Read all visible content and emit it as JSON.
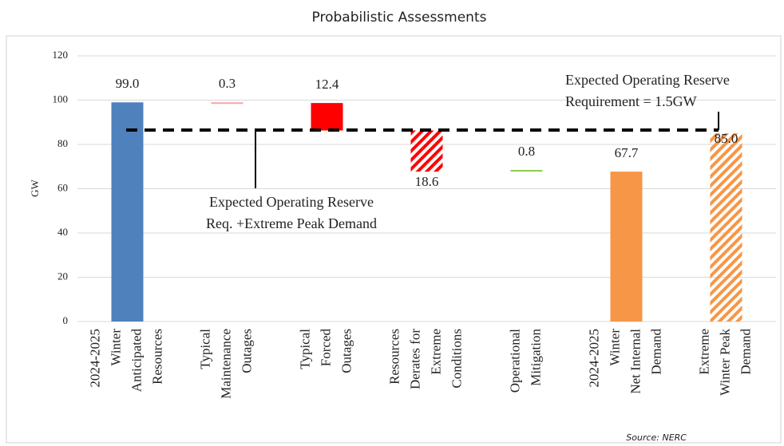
{
  "chart_data": {
    "type": "waterfall",
    "title": "Probabilistic Assessments",
    "y_label": "GW",
    "source": "Source: NERC",
    "categories": [
      [
        "2024-2025",
        "Winter",
        "Anticipated",
        "Resources"
      ],
      [
        "Typical",
        "Maintenance",
        "Outages"
      ],
      [
        "Typical",
        "Forced",
        "Outages"
      ],
      [
        "Resources",
        "Derates for",
        "Extreme",
        "Conditions"
      ],
      [
        "Operational",
        "Mitigation"
      ],
      [
        "2024-2025",
        "Winter",
        "Net Internal",
        "Demand"
      ],
      [
        "Extreme",
        "Winter Peak",
        "Demand"
      ]
    ],
    "values": [
      99.0,
      0.3,
      12.4,
      18.6,
      0.8,
      67.7,
      85.0
    ],
    "value_labels": [
      "99.0",
      "0.3",
      "12.4",
      "18.6",
      "0.8",
      "67.7",
      "85.0"
    ],
    "kinds": [
      "total",
      "decrease",
      "decrease",
      "decrease",
      "increase",
      "total",
      "total"
    ],
    "colors": [
      "#4f81bd",
      "#f4a6a6",
      "#ff0000",
      "#ff0000",
      "#92d050",
      "#f79646",
      "#f79646"
    ],
    "hatched": [
      false,
      false,
      false,
      true,
      false,
      false,
      true
    ],
    "ylim": [
      0,
      120
    ],
    "yticks": [
      0,
      20,
      40,
      60,
      80,
      100,
      120
    ],
    "grid": true,
    "reference_line": 86.5,
    "annotations": [
      [
        "Expected Operating Reserve",
        "Requirement = 1.5GW"
      ],
      [
        "Expected Operating Reserve",
        "Req. +Extreme Peak Demand"
      ]
    ]
  }
}
